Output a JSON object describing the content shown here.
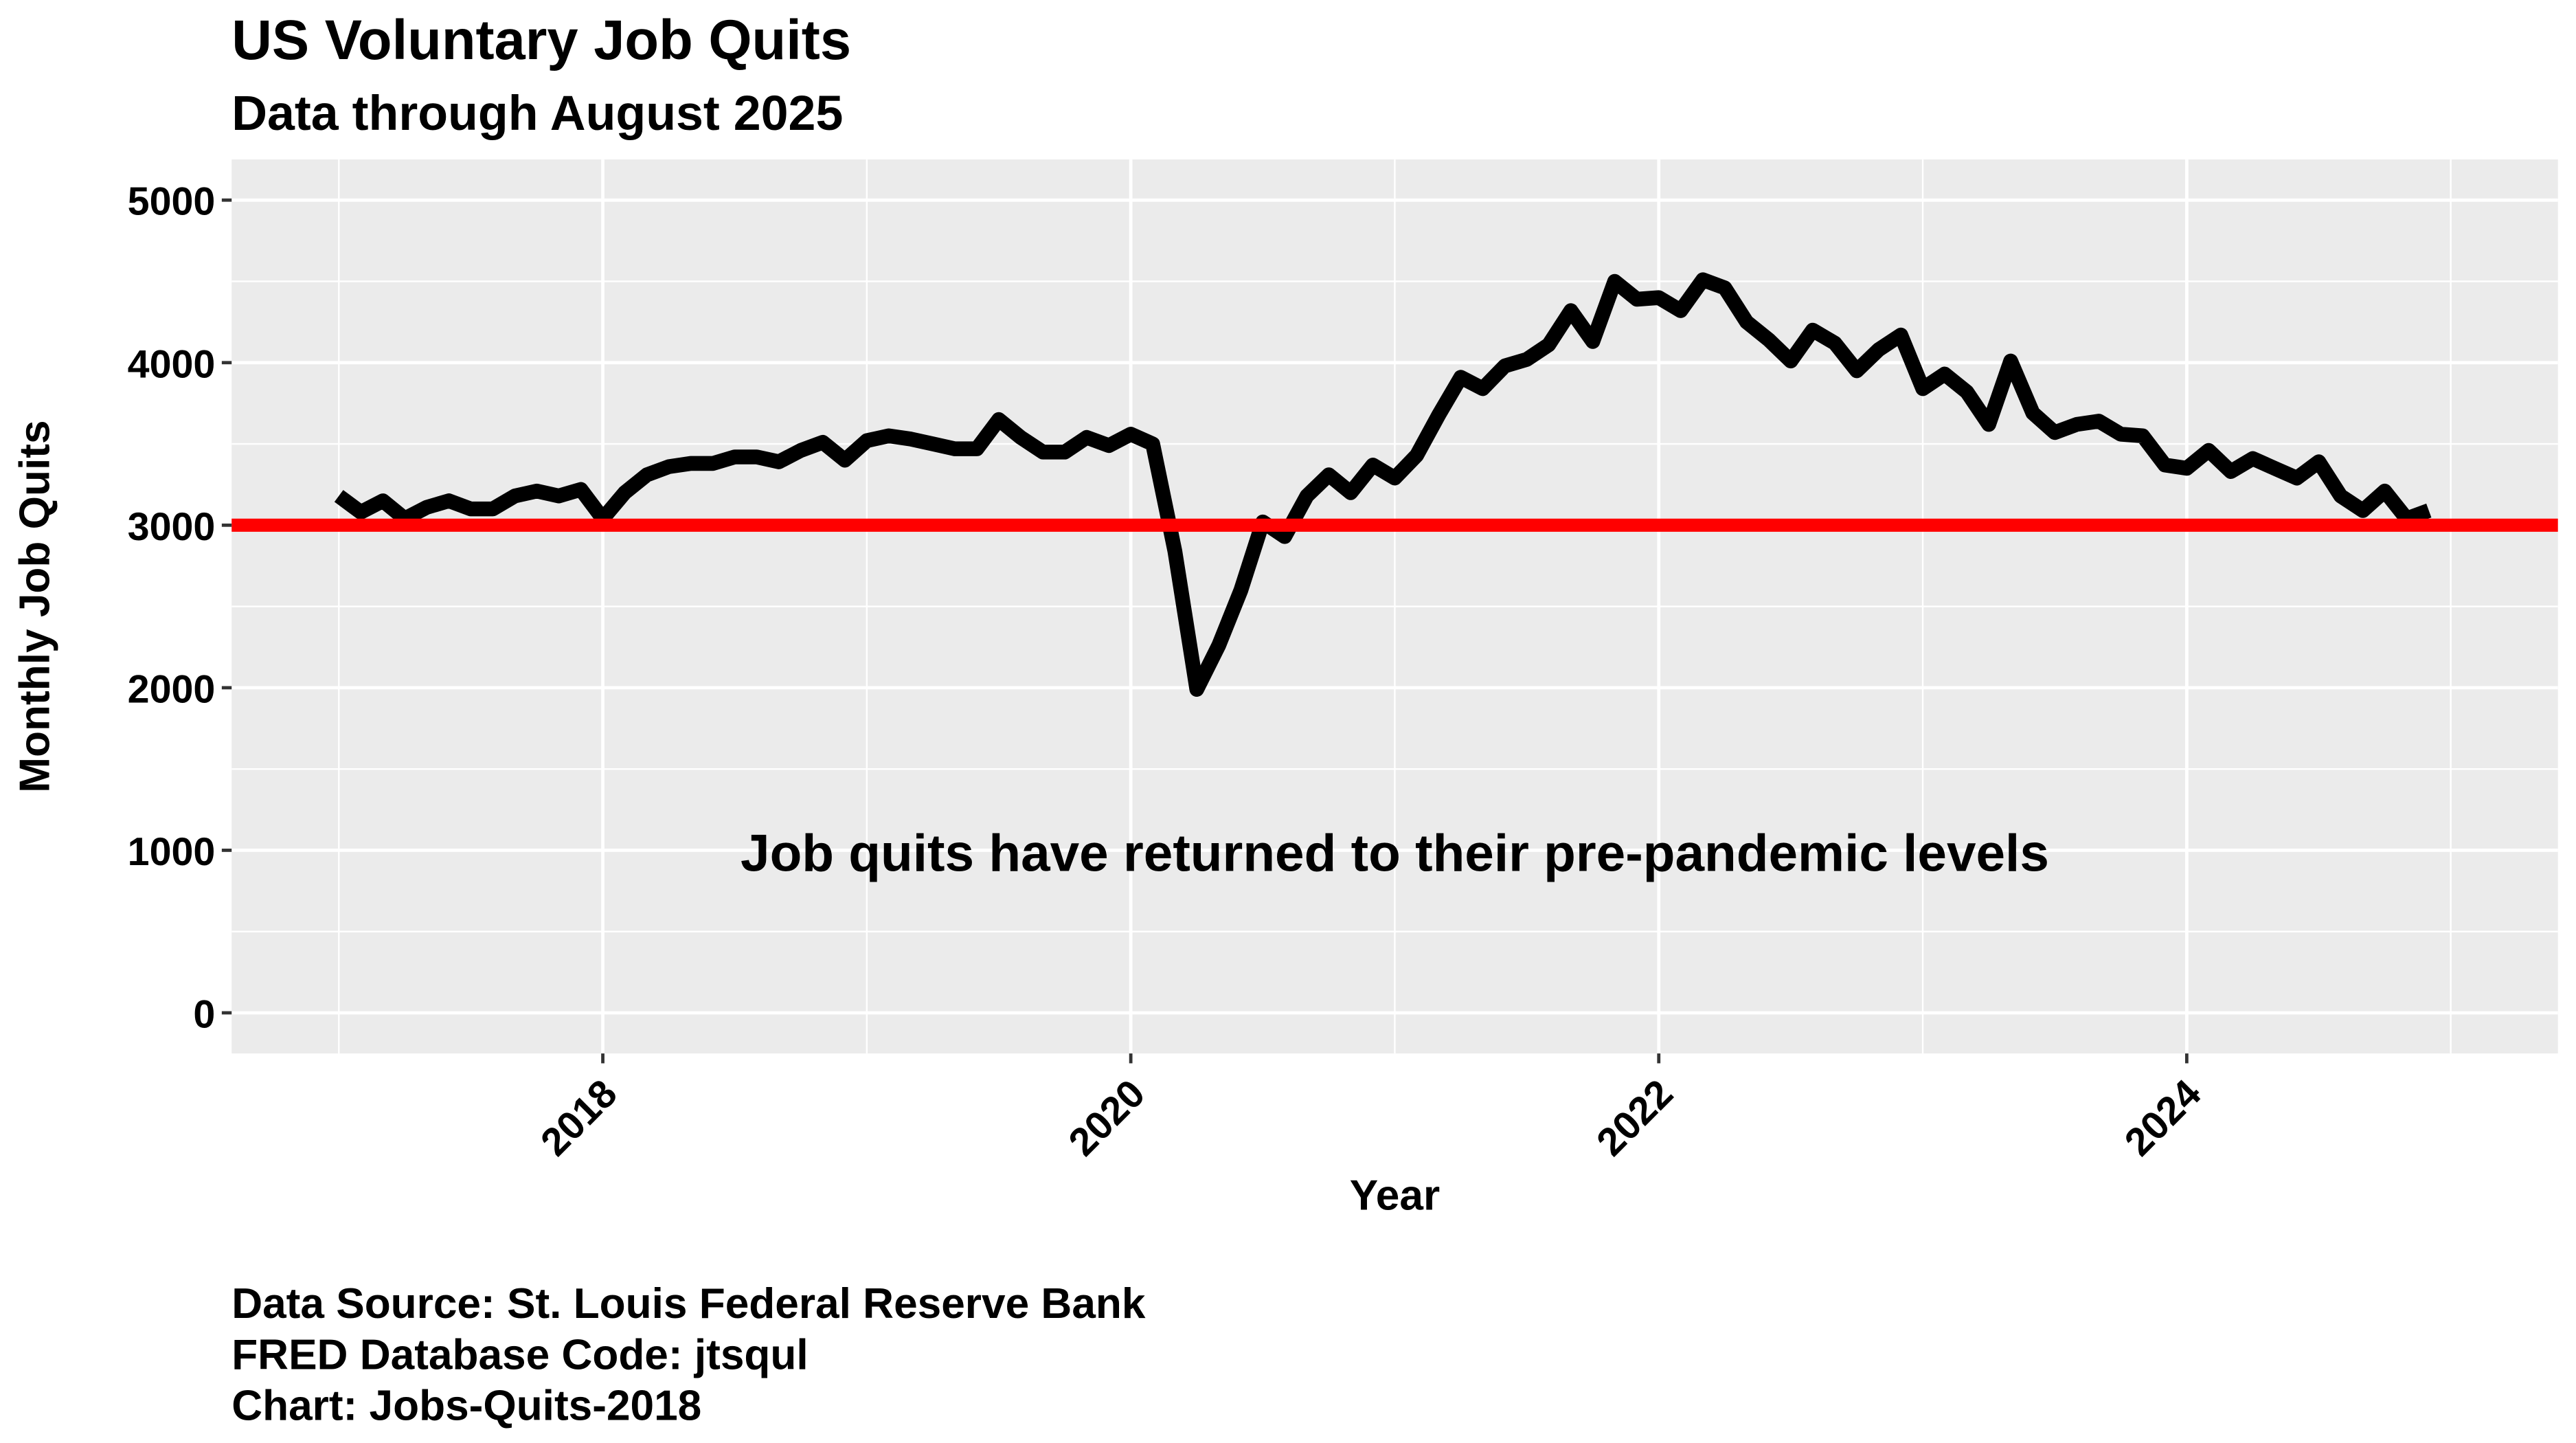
{
  "chart_data": {
    "type": "line",
    "title": "US Voluntary Job Quits",
    "subtitle": "Data through August 2025",
    "x_label": "Year",
    "y_label": "Monthly Job Quits",
    "annotation": "Job quits have returned to their pre-pandemic levels",
    "caption": [
      "Data Source: St. Louis Federal Reserve Bank",
      "FRED Database Code: jtsqul",
      "Chart: Jobs-Quits-2018"
    ],
    "x": [
      2017,
      2017.083,
      2017.167,
      2017.25,
      2017.333,
      2017.417,
      2017.5,
      2017.583,
      2017.667,
      2017.75,
      2017.833,
      2017.917,
      2018,
      2018.083,
      2018.167,
      2018.25,
      2018.333,
      2018.417,
      2018.5,
      2018.583,
      2018.667,
      2018.75,
      2018.833,
      2018.917,
      2019,
      2019.083,
      2019.167,
      2019.25,
      2019.333,
      2019.417,
      2019.5,
      2019.583,
      2019.667,
      2019.75,
      2019.833,
      2019.917,
      2020,
      2020.083,
      2020.167,
      2020.25,
      2020.333,
      2020.417,
      2020.5,
      2020.583,
      2020.667,
      2020.75,
      2020.833,
      2020.917,
      2021,
      2021.083,
      2021.167,
      2021.25,
      2021.333,
      2021.417,
      2021.5,
      2021.583,
      2021.667,
      2021.75,
      2021.833,
      2021.917,
      2022,
      2022.083,
      2022.167,
      2022.25,
      2022.333,
      2022.417,
      2022.5,
      2022.583,
      2022.667,
      2022.75,
      2022.833,
      2022.917,
      2023,
      2023.083,
      2023.167,
      2023.25,
      2023.333,
      2023.417,
      2023.5,
      2023.583,
      2023.667,
      2023.75,
      2023.833,
      2023.917,
      2024,
      2024.083,
      2024.167,
      2024.25,
      2024.333,
      2024.417,
      2024.5,
      2024.583,
      2024.667,
      2024.75,
      2024.833,
      2024.917
    ],
    "series": [
      {
        "name": "Monthly Job Quits",
        "color": "#000000",
        "values": [
          3180,
          3080,
          3150,
          3040,
          3110,
          3150,
          3100,
          3100,
          3180,
          3210,
          3180,
          3220,
          3040,
          3200,
          3310,
          3360,
          3380,
          3380,
          3420,
          3420,
          3390,
          3460,
          3510,
          3400,
          3520,
          3550,
          3530,
          3500,
          3470,
          3470,
          3650,
          3540,
          3450,
          3450,
          3540,
          3490,
          3560,
          3500,
          2840,
          1990,
          2260,
          2600,
          3020,
          2930,
          3180,
          3310,
          3200,
          3370,
          3290,
          3430,
          3680,
          3910,
          3840,
          3980,
          4020,
          4110,
          4320,
          4130,
          4500,
          4390,
          4400,
          4320,
          4510,
          4460,
          4250,
          4140,
          4010,
          4200,
          4120,
          3950,
          4080,
          4170,
          3840,
          3930,
          3820,
          3620,
          4010,
          3690,
          3570,
          3620,
          3640,
          3560,
          3550,
          3370,
          3350,
          3460,
          3330,
          3410,
          3350,
          3290,
          3390,
          3180,
          3090,
          3210,
          3040,
          3090
        ]
      }
    ],
    "reference_line": {
      "value": 3000,
      "color": "#ff0000"
    },
    "xlim": [
      2016.594,
      2025.406
    ],
    "xticks": [
      2018,
      2020,
      2022,
      2024
    ],
    "ylim": [
      -250,
      5250
    ],
    "yticks": [
      0,
      1000,
      2000,
      3000,
      4000,
      5000
    ],
    "grid": true
  }
}
